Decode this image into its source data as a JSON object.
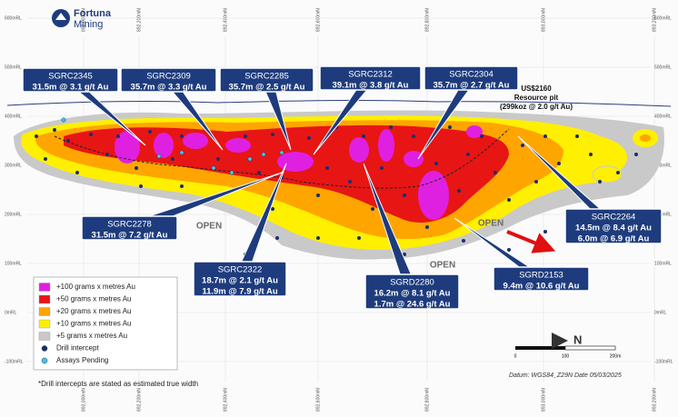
{
  "logo": {
    "line1": "Fortuna",
    "line2": "Mining"
  },
  "northings": [
    "892,000mN",
    "892,200mN",
    "892,400mN",
    "892,600mN",
    "892,800mN",
    "893,000mN",
    "893,200mN"
  ],
  "elevations": [
    "600mRL",
    "500mRL",
    "400mRL",
    "300mRL",
    "200mRL",
    "100mRL",
    "0mRL",
    "-100mRL"
  ],
  "callouts": [
    {
      "hole": "SGRC2345",
      "intercepts": [
        "31.5m @ 3.1 g/t Au"
      ]
    },
    {
      "hole": "SGRC2309",
      "intercepts": [
        "35.7m @ 3.3 g/t Au"
      ]
    },
    {
      "hole": "SGRC2285",
      "intercepts": [
        "35.7m @ 2.5 g/t Au"
      ]
    },
    {
      "hole": "SGRC2312",
      "intercepts": [
        "39.1m @ 3.8 g/t Au"
      ]
    },
    {
      "hole": "SGRC2304",
      "intercepts": [
        "35.7m @ 2.7 g/t Au"
      ]
    },
    {
      "hole": "SGRC2278",
      "intercepts": [
        "31.5m @ 7.2 g/t Au"
      ]
    },
    {
      "hole": "SGRC2322",
      "intercepts": [
        "18.7m @ 2.1 g/t Au",
        "11.9m @ 7.9 g/t Au"
      ]
    },
    {
      "hole": "SGRD2280",
      "intercepts": [
        "16.2m @ 8.1 g/t Au",
        "1.7m @ 24.6 g/t Au"
      ]
    },
    {
      "hole": "SGRD2153",
      "intercepts": [
        "9.4m @ 10.6 g/t Au"
      ]
    },
    {
      "hole": "SGRC2264",
      "intercepts": [
        "14.5m @ 8.4 g/t Au",
        "6.0m @ 6.9 g/t Au"
      ]
    }
  ],
  "resource_pit": {
    "line1": "US$2160",
    "line2": "Resource pit",
    "line3": "(299koz @ 2.0 g/t Au)"
  },
  "open_labels": [
    "OPEN",
    "OPEN",
    "OPEN"
  ],
  "legend": {
    "items": [
      "+100 grams x metres Au",
      "+50 grams x metres Au",
      "+20 grams x metres Au",
      "+10 grams x metres Au",
      "+5 grams x metres Au",
      "Drill intercept",
      "Assays Pending"
    ]
  },
  "footnote": "*Drill intercepts are stated as estimated true width",
  "scale": {
    "labels": [
      "0",
      "100",
      "200m"
    ],
    "north": "N"
  },
  "datum": "Datum: WGS84_Z29N Date 05/03/2025"
}
